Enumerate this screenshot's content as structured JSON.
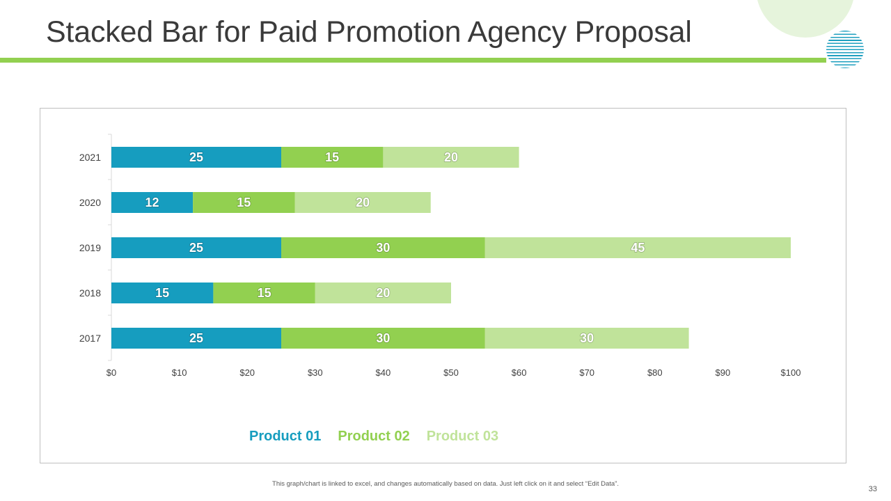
{
  "slide": {
    "title": "Stacked Bar for Paid Promotion Agency Proposal",
    "footnote": "This graph/chart is linked to excel, and changes automatically based on data. Just left click on it and select “Edit Data”.",
    "page_number": "33",
    "accent_color": "#92d050"
  },
  "chart_data": {
    "type": "bar",
    "orientation": "horizontal",
    "stacked": true,
    "categories": [
      "2021",
      "2020",
      "2019",
      "2018",
      "2017"
    ],
    "series": [
      {
        "name": "Product 01",
        "color": "#169dbf",
        "values": [
          25,
          12,
          25,
          15,
          25
        ]
      },
      {
        "name": "Product 02",
        "color": "#92d050",
        "values": [
          15,
          15,
          30,
          15,
          30
        ]
      },
      {
        "name": "Product 03",
        "color": "#c0e39a",
        "values": [
          20,
          20,
          45,
          20,
          30
        ]
      }
    ],
    "xlim": [
      0,
      100
    ],
    "x_ticks": [
      "$0",
      "$10",
      "$20",
      "$30",
      "$40",
      "$50",
      "$60",
      "$70",
      "$80",
      "$90",
      "$100"
    ],
    "title": "",
    "xlabel": "",
    "ylabel": "",
    "legend_position": "bottom"
  }
}
